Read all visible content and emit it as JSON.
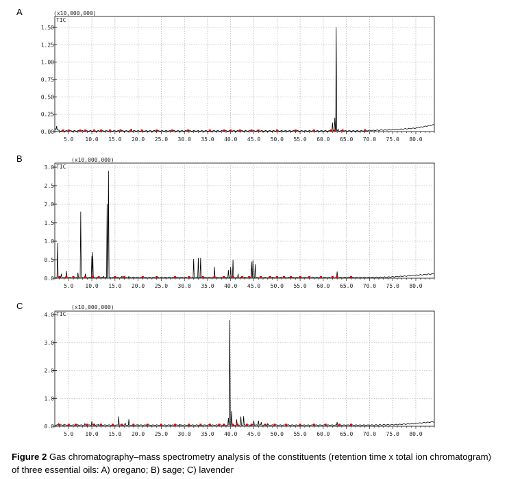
{
  "caption": {
    "label": "Figure 2",
    "text": " Gas chromatography–mass spectrometry analysis of the constituents (retention time  x  total ion chromatogram) of three essential oils: A) oregano; B) sage; C) lavender"
  },
  "colors": {
    "trace": "#000000",
    "peak_marker": "#e00000",
    "grid": "#9a9a9a"
  },
  "chart_data": [
    {
      "type": "line",
      "panel_label": "A",
      "scale_label": "(x10,000,000)",
      "series_label": "TIC",
      "xlim": [
        2.0,
        84.0
      ],
      "ylim": [
        0,
        1.5
      ],
      "x_ticks": [
        5.0,
        10.0,
        15.0,
        20.0,
        25.0,
        30.0,
        35.0,
        40.0,
        45.0,
        50.0,
        55.0,
        60.0,
        65.0,
        70.0,
        75.0,
        80.0
      ],
      "x_tick_labels": [
        "5.0",
        "10.0",
        "15.0",
        "20.0",
        "25.0",
        "30.0",
        "35.0",
        "40.0",
        "45.0",
        "50.0",
        "55.0",
        "60.0",
        "65.0",
        "70.0",
        "75.0",
        "80.0"
      ],
      "y_ticks": [
        0,
        0.25,
        0.5,
        0.75,
        1.0,
        1.25,
        1.5
      ],
      "y_tick_labels": [
        "0.00",
        "0.25",
        "0.50",
        "0.75",
        "1.00",
        "1.25",
        "1.50"
      ],
      "grid": true,
      "baseline": [
        [
          2.0,
          0.04
        ],
        [
          3.0,
          0.01
        ],
        [
          68.0,
          0.01
        ],
        [
          72.0,
          0.02
        ],
        [
          76.0,
          0.03
        ],
        [
          80.0,
          0.05
        ],
        [
          84.0,
          0.1
        ]
      ],
      "peaks": [
        [
          2.4,
          0.08
        ],
        [
          7.5,
          0.01
        ],
        [
          12.0,
          0.02
        ],
        [
          16.2,
          0.03
        ],
        [
          18.5,
          0.04
        ],
        [
          35.5,
          0.01
        ],
        [
          40.0,
          0.01
        ],
        [
          44.5,
          0.01
        ],
        [
          46.0,
          0.01
        ],
        [
          62.0,
          0.13
        ],
        [
          62.5,
          0.2
        ],
        [
          62.8,
          1.5
        ],
        [
          63.2,
          0.04
        ]
      ],
      "markers": [
        3.8,
        5.0,
        7.5,
        8.6,
        10.5,
        12.0,
        13.9,
        16.2,
        18.5,
        20.8,
        24.0,
        27.4,
        30.8,
        35.5,
        38.6,
        40.0,
        42.0,
        44.5,
        46.0,
        50.0,
        54.0,
        58.0,
        61.7,
        62.5,
        64.2,
        69.0
      ]
    },
    {
      "type": "line",
      "panel_label": "B",
      "scale_label": "(x10,000,000)",
      "series_label": "TIC",
      "xlim": [
        2.0,
        84.0
      ],
      "ylim": [
        0,
        3.0
      ],
      "x_ticks": [
        5.0,
        10.0,
        15.0,
        20.0,
        25.0,
        30.0,
        35.0,
        40.0,
        45.0,
        50.0,
        55.0,
        60.0,
        65.0,
        70.0,
        75.0,
        80.0
      ],
      "x_tick_labels": [
        "5.0",
        "10.0",
        "15.0",
        "20.0",
        "25.0",
        "30.0",
        "35.0",
        "40.0",
        "45.0",
        "50.0",
        "55.0",
        "60.0",
        "65.0",
        "70.0",
        "75.0",
        "80.0"
      ],
      "y_ticks": [
        0,
        0.5,
        1.0,
        1.5,
        2.0,
        2.5,
        3.0
      ],
      "y_tick_labels": [
        "0.0",
        "0.5",
        "1.0",
        "1.5",
        "2.0",
        "2.5",
        "3.0"
      ],
      "grid": true,
      "baseline": [
        [
          2.0,
          0.02
        ],
        [
          70.0,
          0.02
        ],
        [
          74.0,
          0.03
        ],
        [
          78.0,
          0.06
        ],
        [
          84.0,
          0.12
        ]
      ],
      "peaks": [
        [
          2.6,
          0.95
        ],
        [
          3.4,
          0.12
        ],
        [
          4.5,
          0.2
        ],
        [
          7.0,
          0.15
        ],
        [
          7.6,
          1.8
        ],
        [
          8.6,
          0.12
        ],
        [
          10.0,
          0.6
        ],
        [
          10.2,
          0.7
        ],
        [
          12.5,
          0.06
        ],
        [
          13.3,
          2.0
        ],
        [
          13.6,
          2.9
        ],
        [
          16.5,
          0.06
        ],
        [
          18.0,
          0.05
        ],
        [
          32.0,
          0.52
        ],
        [
          33.0,
          0.55
        ],
        [
          33.5,
          0.55
        ],
        [
          36.5,
          0.3
        ],
        [
          39.5,
          0.22
        ],
        [
          40.0,
          0.3
        ],
        [
          40.5,
          0.5
        ],
        [
          41.6,
          0.12
        ],
        [
          44.5,
          0.45
        ],
        [
          44.8,
          0.48
        ],
        [
          45.3,
          0.38
        ],
        [
          53.0,
          0.04
        ],
        [
          63.0,
          0.18
        ],
        [
          66.0,
          0.04
        ]
      ],
      "markers": [
        3.0,
        4.5,
        6.0,
        8.6,
        10.2,
        11.5,
        15.0,
        17.0,
        21.0,
        24.0,
        28.0,
        31.0,
        34.0,
        36.5,
        38.5,
        40.5,
        42.5,
        44.0,
        46.5,
        48.5,
        50.0,
        51.5,
        53.0,
        55.0,
        57.0,
        59.5,
        62.0,
        63.0,
        66.0
      ]
    },
    {
      "type": "line",
      "panel_label": "C",
      "scale_label": "(x10,000,000)",
      "series_label": "TIC",
      "xlim": [
        2.0,
        84.0
      ],
      "ylim": [
        0,
        4.0
      ],
      "x_ticks": [
        5.0,
        10.0,
        15.0,
        20.0,
        25.0,
        30.0,
        35.0,
        40.0,
        45.0,
        50.0,
        55.0,
        60.0,
        65.0,
        70.0,
        75.0,
        80.0
      ],
      "x_tick_labels": [
        "5.0",
        "10.0",
        "15.0",
        "20.0",
        "25.0",
        "30.0",
        "35.0",
        "40.0",
        "45.0",
        "50.0",
        "55.0",
        "60.0",
        "65.0",
        "70.0",
        "75.0",
        "80.0"
      ],
      "y_ticks": [
        0,
        1.0,
        2.0,
        3.0,
        4.0
      ],
      "y_tick_labels": [
        "0.0",
        "1.0",
        "2.0",
        "3.0",
        "4.0"
      ],
      "grid": true,
      "baseline": [
        [
          2.0,
          0.04
        ],
        [
          70.0,
          0.04
        ],
        [
          76.0,
          0.06
        ],
        [
          80.0,
          0.1
        ],
        [
          84.0,
          0.16
        ]
      ],
      "peaks": [
        [
          2.8,
          0.1
        ],
        [
          4.0,
          0.08
        ],
        [
          5.0,
          0.06
        ],
        [
          7.0,
          0.06
        ],
        [
          8.5,
          0.1
        ],
        [
          10.0,
          0.18
        ],
        [
          11.5,
          0.08
        ],
        [
          15.8,
          0.35
        ],
        [
          17.2,
          0.12
        ],
        [
          18.0,
          0.25
        ],
        [
          20.0,
          0.06
        ],
        [
          27.0,
          0.05
        ],
        [
          29.0,
          0.07
        ],
        [
          39.5,
          0.3
        ],
        [
          39.8,
          3.8
        ],
        [
          40.2,
          0.55
        ],
        [
          41.3,
          0.24
        ],
        [
          42.2,
          0.35
        ],
        [
          42.8,
          0.36
        ],
        [
          45.0,
          0.2
        ],
        [
          46.0,
          0.2
        ],
        [
          46.6,
          0.15
        ],
        [
          48.0,
          0.1
        ],
        [
          63.0,
          0.15
        ]
      ],
      "markers": [
        3.0,
        5.0,
        6.5,
        9.0,
        10.5,
        12.0,
        14.5,
        16.5,
        19.0,
        22.0,
        25.0,
        28.0,
        31.0,
        33.5,
        35.5,
        37.5,
        38.5,
        40.5,
        41.5,
        43.5,
        44.5,
        47.5,
        49.5,
        52.0,
        55.0,
        58.0,
        60.5,
        63.5,
        66.0
      ]
    }
  ]
}
